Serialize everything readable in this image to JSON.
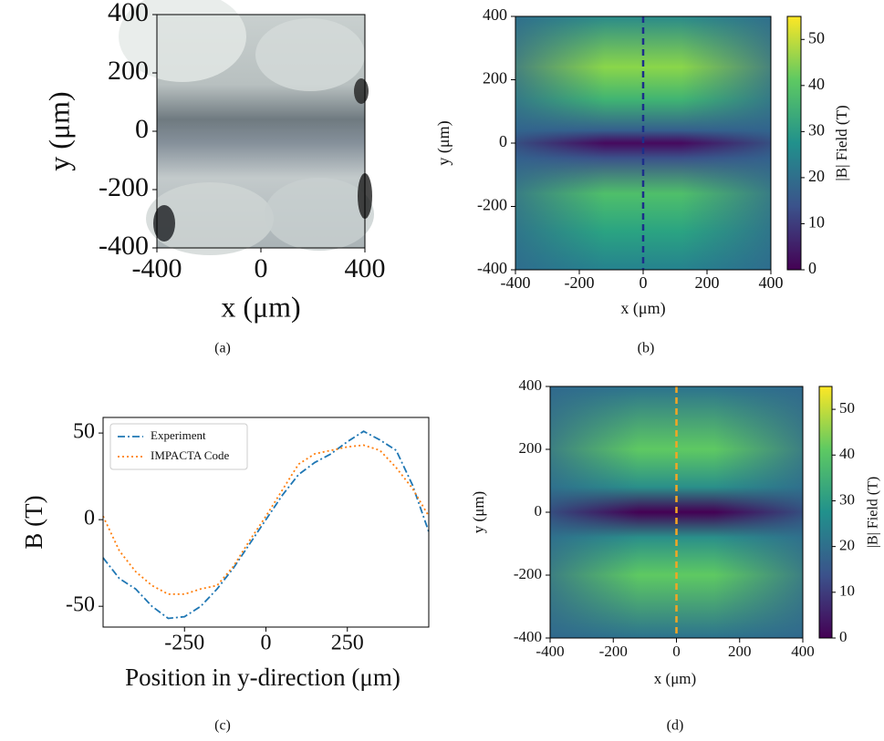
{
  "chart_data": [
    {
      "type": "image",
      "caption": "(a)",
      "xlabel": "x (μm)",
      "ylabel": "y (μm)",
      "xlim": [
        -400,
        400
      ],
      "ylim": [
        -400,
        400
      ],
      "xticks": [
        -400,
        0,
        400
      ],
      "yticks": [
        -400,
        -200,
        0,
        200,
        400
      ]
    },
    {
      "type": "heatmap",
      "caption": "(b)",
      "xlabel": "x (μm)",
      "ylabel": "y (μm)",
      "colorbar_label": "|B| Field (T)",
      "xlim": [
        -400,
        400
      ],
      "ylim": [
        -400,
        400
      ],
      "xticks": [
        -400,
        -200,
        0,
        200,
        400
      ],
      "yticks": [
        -400,
        -200,
        0,
        200,
        400
      ],
      "clim": [
        0,
        55
      ],
      "cticks": [
        0,
        10,
        20,
        30,
        40,
        50
      ],
      "vline": 0,
      "vline_color": "#1c2f8a"
    },
    {
      "type": "line",
      "caption": "(c)",
      "xlabel": "Position in y-direction (μm)",
      "ylabel": "B (T)",
      "x": [
        -500,
        -450,
        -400,
        -350,
        -300,
        -250,
        -200,
        -150,
        -100,
        -50,
        0,
        50,
        100,
        150,
        200,
        250,
        300,
        350,
        400,
        450,
        500
      ],
      "series": [
        {
          "name": "Experiment",
          "color": "#1f77b4",
          "style": "dashdot",
          "values": [
            -22,
            -34,
            -40,
            -50,
            -57,
            -56,
            -50,
            -40,
            -28,
            -14,
            0,
            14,
            26,
            33,
            38,
            45,
            51,
            46,
            40,
            20,
            -7
          ]
        },
        {
          "name": "IMPACTA Code",
          "color": "#ff7f0e",
          "style": "dotted",
          "values": [
            2,
            -18,
            -30,
            -38,
            -43,
            -43,
            -40,
            -38,
            -27,
            -12,
            2,
            17,
            32,
            38,
            40,
            42,
            43,
            40,
            30,
            18,
            2
          ]
        }
      ],
      "xlim": [
        -500,
        500
      ],
      "ylim": [
        -62,
        59
      ],
      "xticks": [
        -250,
        0,
        250
      ],
      "yticks": [
        -50,
        0,
        50
      ],
      "legend": "upper left"
    },
    {
      "type": "heatmap",
      "caption": "(d)",
      "xlabel": "x (μm)",
      "ylabel": "y (μm)",
      "colorbar_label": "|B| Field (T)",
      "xlim": [
        -400,
        400
      ],
      "ylim": [
        -400,
        400
      ],
      "xticks": [
        -400,
        -200,
        0,
        200,
        400
      ],
      "yticks": [
        -400,
        -200,
        0,
        200,
        400
      ],
      "clim": [
        0,
        55
      ],
      "cticks": [
        0,
        10,
        20,
        30,
        40,
        50
      ],
      "vline": 0,
      "vline_color": "#f5a623"
    }
  ]
}
